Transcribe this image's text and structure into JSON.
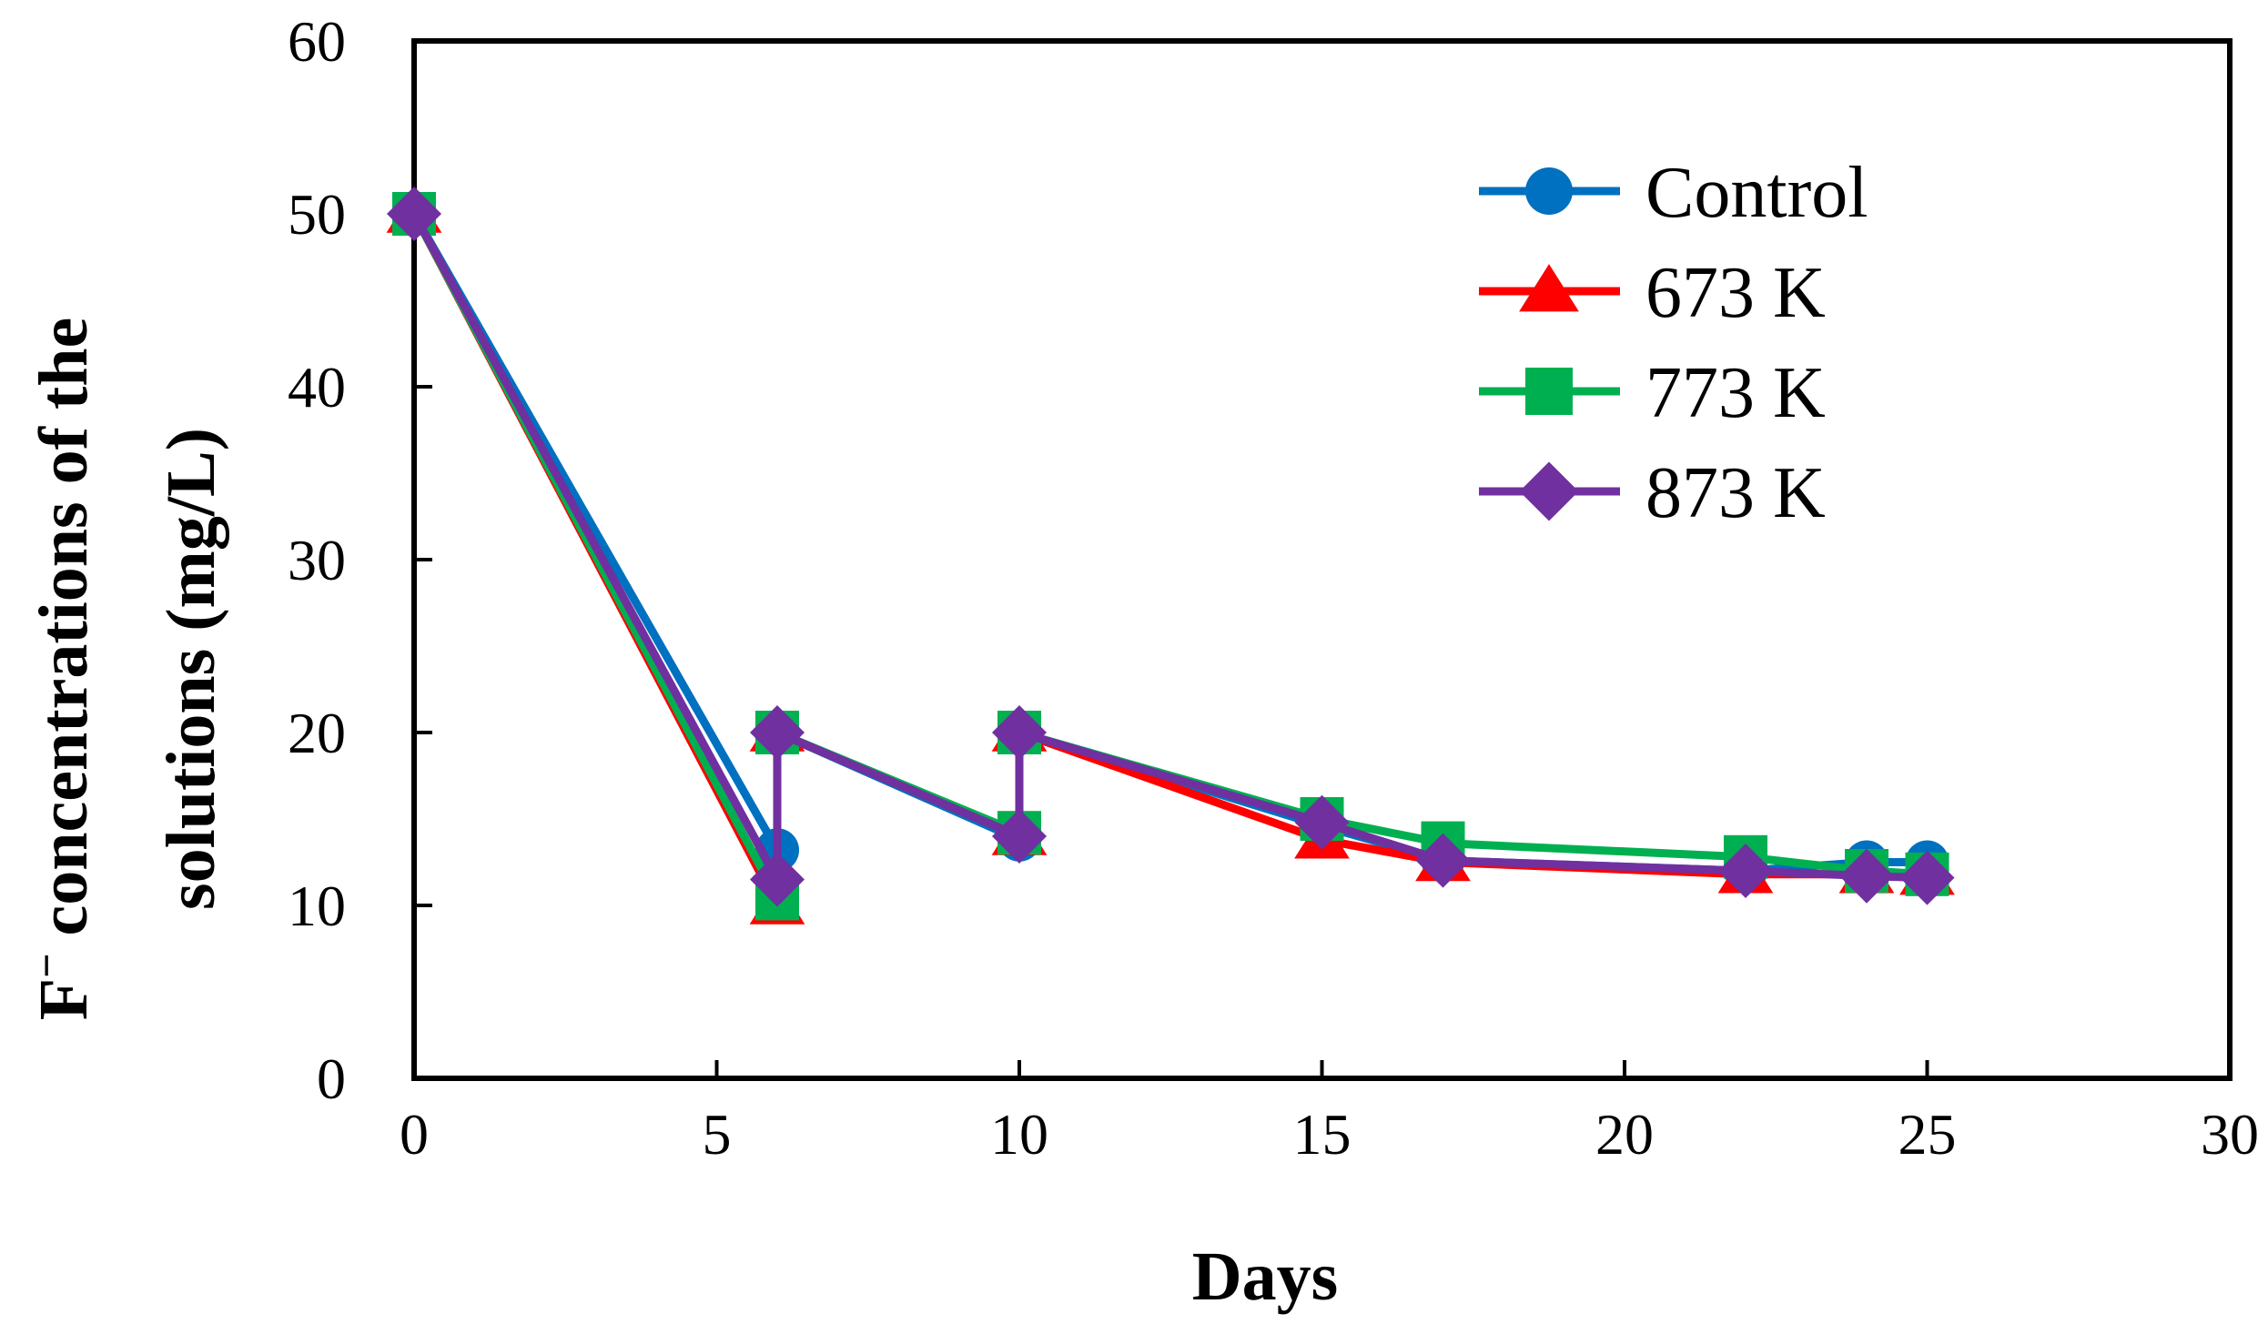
{
  "chart_data": {
    "type": "line",
    "title": "",
    "xlabel": "Days",
    "ylabel_prefix": "F",
    "ylabel_superscript": "−",
    "ylabel_line1": " concentrations of the",
    "ylabel_line2": "solutions (mg/L)",
    "xlim": [
      0,
      30
    ],
    "ylim": [
      0,
      60
    ],
    "xticks": [
      0,
      5,
      10,
      15,
      20,
      25,
      30
    ],
    "yticks": [
      0,
      10,
      20,
      30,
      40,
      50,
      60
    ],
    "grid": false,
    "legend_position": "top-right",
    "series": [
      {
        "name": "Control",
        "color": "#0070C0",
        "marker": "circle",
        "points": [
          [
            0,
            50
          ],
          [
            6,
            13.2
          ],
          [
            6,
            20
          ],
          [
            10,
            13.8
          ],
          [
            10,
            20
          ],
          [
            15,
            14.6
          ],
          [
            17,
            12.6
          ],
          [
            22,
            12
          ],
          [
            24,
            12.5
          ],
          [
            25,
            12.5
          ]
        ]
      },
      {
        "name": "673 K",
        "color": "#FF0000",
        "marker": "triangle",
        "points": [
          [
            0,
            50
          ],
          [
            6,
            10
          ],
          [
            6,
            20
          ],
          [
            10,
            14
          ],
          [
            10,
            20
          ],
          [
            15,
            13.8
          ],
          [
            17,
            12.5
          ],
          [
            22,
            11.8
          ],
          [
            24,
            11.8
          ],
          [
            25,
            11.7
          ]
        ]
      },
      {
        "name": "773 K",
        "color": "#00B050",
        "marker": "square",
        "points": [
          [
            0,
            50
          ],
          [
            6,
            10.4
          ],
          [
            6,
            20
          ],
          [
            10,
            14.2
          ],
          [
            10,
            20
          ],
          [
            15,
            15
          ],
          [
            17,
            13.6
          ],
          [
            22,
            12.8
          ],
          [
            24,
            12
          ],
          [
            25,
            11.8
          ]
        ]
      },
      {
        "name": "873 K",
        "color": "#7030A0",
        "marker": "diamond",
        "points": [
          [
            0,
            50
          ],
          [
            6,
            11.5
          ],
          [
            6,
            20
          ],
          [
            10,
            14
          ],
          [
            10,
            20
          ],
          [
            15,
            14.8
          ],
          [
            17,
            12.6
          ],
          [
            22,
            12
          ],
          [
            24,
            11.7
          ],
          [
            25,
            11.6
          ]
        ]
      }
    ]
  }
}
